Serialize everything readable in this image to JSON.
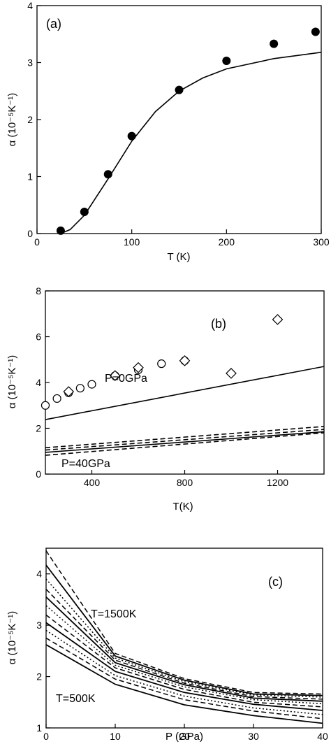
{
  "chart_data": [
    {
      "type": "scatter",
      "panel_label": "(a)",
      "xlabel": "T (K)",
      "ylabel": "α (10⁻⁵K⁻¹)",
      "xlim": [
        0,
        300
      ],
      "ylim": [
        0,
        4
      ],
      "xticks": [
        0,
        100,
        200,
        300
      ],
      "yticks": [
        0,
        1,
        2,
        3,
        4
      ],
      "points": [
        {
          "x": 25,
          "y": 0.05
        },
        {
          "x": 50,
          "y": 0.38
        },
        {
          "x": 75,
          "y": 1.04
        },
        {
          "x": 100,
          "y": 1.71
        },
        {
          "x": 150,
          "y": 2.52
        },
        {
          "x": 200,
          "y": 3.03
        },
        {
          "x": 250,
          "y": 3.33
        },
        {
          "x": 294,
          "y": 3.54
        }
      ],
      "line": [
        {
          "x": 25,
          "y": 0.0
        },
        {
          "x": 35,
          "y": 0.07
        },
        {
          "x": 50,
          "y": 0.32
        },
        {
          "x": 75,
          "y": 0.96
        },
        {
          "x": 100,
          "y": 1.62
        },
        {
          "x": 125,
          "y": 2.14
        },
        {
          "x": 150,
          "y": 2.5
        },
        {
          "x": 175,
          "y": 2.73
        },
        {
          "x": 200,
          "y": 2.89
        },
        {
          "x": 250,
          "y": 3.07
        },
        {
          "x": 300,
          "y": 3.18
        }
      ]
    },
    {
      "type": "scatter",
      "panel_label": "(b)",
      "xlabel": "T(K)",
      "ylabel": "α (10⁻⁵K⁻¹)",
      "xlim": [
        200,
        1400
      ],
      "ylim": [
        0,
        8
      ],
      "xticks": [
        400,
        800,
        1200
      ],
      "yticks": [
        0,
        2,
        4,
        6,
        8
      ],
      "annotations": [
        "P=0GPa",
        "P=40GPa"
      ],
      "circles": [
        {
          "x": 200,
          "y": 3.0
        },
        {
          "x": 250,
          "y": 3.3
        },
        {
          "x": 300,
          "y": 3.55
        },
        {
          "x": 350,
          "y": 3.75
        },
        {
          "x": 400,
          "y": 3.92
        },
        {
          "x": 500,
          "y": 4.3
        },
        {
          "x": 600,
          "y": 4.55
        },
        {
          "x": 700,
          "y": 4.82
        },
        {
          "x": 800,
          "y": 4.95
        }
      ],
      "diamonds": [
        {
          "x": 300,
          "y": 3.6
        },
        {
          "x": 500,
          "y": 4.3
        },
        {
          "x": 600,
          "y": 4.65
        },
        {
          "x": 800,
          "y": 4.95
        },
        {
          "x": 1000,
          "y": 4.4
        },
        {
          "x": 1200,
          "y": 6.75
        }
      ],
      "lines": [
        {
          "style": "solid",
          "points": [
            {
              "x": 200,
              "y": 2.38
            },
            {
              "x": 1400,
              "y": 4.7
            }
          ]
        },
        {
          "style": "solid",
          "points": [
            {
              "x": 200,
              "y": 0.95
            },
            {
              "x": 1400,
              "y": 1.85
            }
          ]
        },
        {
          "style": "dashed",
          "points": [
            {
              "x": 200,
              "y": 1.05
            },
            {
              "x": 1400,
              "y": 1.95
            }
          ]
        },
        {
          "style": "dashed",
          "points": [
            {
              "x": 200,
              "y": 1.15
            },
            {
              "x": 1400,
              "y": 2.08
            }
          ]
        },
        {
          "style": "dashed",
          "points": [
            {
              "x": 200,
              "y": 0.82
            },
            {
              "x": 1400,
              "y": 1.8
            }
          ]
        }
      ]
    },
    {
      "type": "line",
      "panel_label": "(c)",
      "xlabel": "P (GPa)",
      "ylabel": "α (10⁻⁵K⁻¹)",
      "xlim": [
        0,
        40
      ],
      "ylim": [
        1,
        4.5
      ],
      "xticks": [
        0,
        10,
        20,
        30,
        40
      ],
      "yticks": [
        1,
        2,
        3,
        4
      ],
      "annotations": [
        "T=1500K",
        "T=500K"
      ],
      "x": [
        0,
        10,
        20,
        30,
        40
      ],
      "series": [
        {
          "style": "solid",
          "values": [
            2.62,
            1.85,
            1.45,
            1.24,
            1.09
          ]
        },
        {
          "style": "dashed",
          "values": [
            2.75,
            1.95,
            1.55,
            1.33,
            1.18
          ]
        },
        {
          "style": "dotted",
          "values": [
            2.9,
            2.02,
            1.62,
            1.39,
            1.26
          ]
        },
        {
          "style": "solid",
          "values": [
            3.05,
            2.1,
            1.69,
            1.46,
            1.34
          ]
        },
        {
          "style": "dashed",
          "values": [
            3.2,
            2.17,
            1.75,
            1.5,
            1.41
          ]
        },
        {
          "style": "dotted",
          "values": [
            3.38,
            2.22,
            1.8,
            1.55,
            1.47
          ]
        },
        {
          "style": "solid",
          "values": [
            3.55,
            2.27,
            1.84,
            1.58,
            1.52
          ]
        },
        {
          "style": "dashed",
          "values": [
            3.7,
            2.32,
            1.87,
            1.61,
            1.56
          ]
        },
        {
          "style": "dotted",
          "values": [
            3.9,
            2.36,
            1.9,
            1.64,
            1.6
          ]
        },
        {
          "style": "solid",
          "values": [
            4.17,
            2.4,
            1.93,
            1.66,
            1.63
          ]
        },
        {
          "style": "dashed",
          "values": [
            4.45,
            2.45,
            1.96,
            1.69,
            1.66
          ]
        }
      ]
    }
  ]
}
